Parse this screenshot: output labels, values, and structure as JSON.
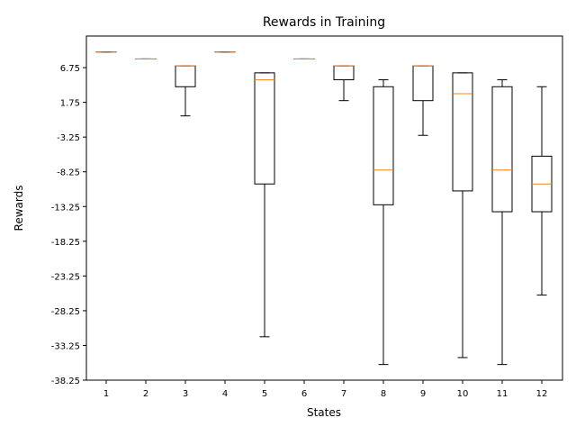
{
  "chart_data": {
    "type": "box",
    "title": "Rewards in Training",
    "xlabel": "States",
    "ylabel": "Rewards",
    "categories": [
      "1",
      "2",
      "3",
      "4",
      "5",
      "6",
      "7",
      "8",
      "9",
      "10",
      "11",
      "12"
    ],
    "yticks": [
      "6.75",
      "1.75",
      "-3.25",
      "-8.25",
      "-13.25",
      "-18.25",
      "-23.25",
      "-28.25",
      "-33.25",
      "-38.25"
    ],
    "ylim": [
      -38.25,
      11.3
    ],
    "boxes": [
      {
        "whisker_low": 9.0,
        "q1": 9.0,
        "median": 9.0,
        "q3": 9.0,
        "whisker_high": 9.0
      },
      {
        "whisker_low": 8.0,
        "q1": 8.0,
        "median": 8.0,
        "q3": 8.0,
        "whisker_high": 8.0
      },
      {
        "whisker_low": -0.2,
        "q1": 4.0,
        "median": 7.0,
        "q3": 7.0,
        "whisker_high": 7.0
      },
      {
        "whisker_low": 9.0,
        "q1": 9.0,
        "median": 9.0,
        "q3": 9.0,
        "whisker_high": 9.0
      },
      {
        "whisker_low": -32.0,
        "q1": -10.0,
        "median": 5.0,
        "q3": 6.0,
        "whisker_high": 6.0
      },
      {
        "whisker_low": 8.0,
        "q1": 8.0,
        "median": 8.0,
        "q3": 8.0,
        "whisker_high": 8.0
      },
      {
        "whisker_low": 2.0,
        "q1": 5.0,
        "median": 7.0,
        "q3": 7.0,
        "whisker_high": 7.0
      },
      {
        "whisker_low": -36.0,
        "q1": -13.0,
        "median": -8.0,
        "q3": 4.0,
        "whisker_high": 5.0
      },
      {
        "whisker_low": -3.0,
        "q1": 2.0,
        "median": 7.0,
        "q3": 7.0,
        "whisker_high": 7.0
      },
      {
        "whisker_low": -35.0,
        "q1": -11.0,
        "median": 3.0,
        "q3": 6.0,
        "whisker_high": 6.0
      },
      {
        "whisker_low": -36.0,
        "q1": -14.0,
        "median": -8.0,
        "q3": 4.0,
        "whisker_high": 5.0
      },
      {
        "whisker_low": -26.0,
        "q1": -14.0,
        "median": -10.0,
        "q3": -6.0,
        "whisker_high": 4.0
      }
    ],
    "colors": {
      "box": "#000000",
      "median": "#ff7f0e",
      "axis": "#000000"
    },
    "grid": false,
    "legend": "none"
  }
}
